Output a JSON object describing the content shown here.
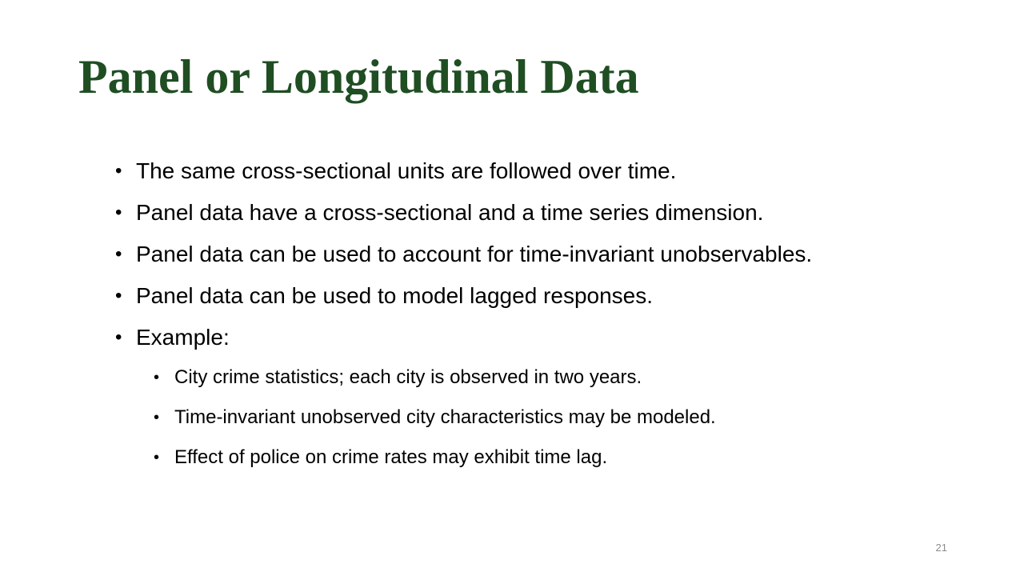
{
  "slide": {
    "title": "Panel or Longitudinal Data",
    "bullets": [
      "The same cross-sectional units are followed over time.",
      "Panel data have a cross-sectional and a time series dimension.",
      "Panel data can be used to account for time-invariant unobservables.",
      "Panel data can be used to model lagged responses.",
      "Example:"
    ],
    "sub_bullets": [
      "City crime statistics; each city is observed in two years.",
      "Time-invariant unobserved city characteristics may be modeled.",
      "Effect of police on crime rates may exhibit time lag."
    ],
    "bullet_glyph": "•",
    "page_number": "21",
    "title_color": "#1f4e23"
  }
}
